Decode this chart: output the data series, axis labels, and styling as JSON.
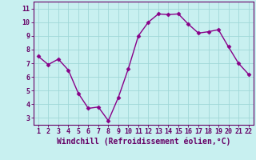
{
  "x": [
    1,
    2,
    3,
    4,
    5,
    6,
    7,
    8,
    9,
    10,
    11,
    12,
    13,
    14,
    15,
    16,
    17,
    18,
    19,
    20,
    21,
    22
  ],
  "y": [
    7.5,
    6.9,
    7.3,
    6.5,
    4.8,
    3.7,
    3.8,
    2.8,
    4.5,
    6.6,
    9.0,
    10.0,
    10.6,
    10.55,
    10.6,
    9.85,
    9.2,
    9.3,
    9.45,
    8.2,
    7.0,
    6.2
  ],
  "line_color": "#880088",
  "marker": "D",
  "marker_size": 2.5,
  "bg_color": "#c8f0f0",
  "grid_color": "#a0d8d8",
  "xlabel": "Windchill (Refroidissement éolien,°C)",
  "xlabel_fontsize": 7,
  "ylabel_ticks": [
    3,
    4,
    5,
    6,
    7,
    8,
    9,
    10,
    11
  ],
  "xticks": [
    1,
    2,
    3,
    4,
    5,
    6,
    7,
    8,
    9,
    10,
    11,
    12,
    13,
    14,
    15,
    16,
    17,
    18,
    19,
    20,
    21,
    22
  ],
  "ylim": [
    2.5,
    11.5
  ],
  "xlim": [
    0.5,
    22.5
  ],
  "tick_fontsize": 6,
  "axis_color": "#660066",
  "spine_color": "#660066",
  "linewidth": 1.0
}
